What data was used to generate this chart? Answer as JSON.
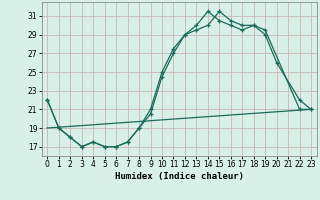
{
  "xlabel": "Humidex (Indice chaleur)",
  "bg_color": "#d8f0e8",
  "line_color": "#1a6b5a",
  "grid_color": "#c8b8b8",
  "xlim": [
    -0.5,
    23.5
  ],
  "ylim": [
    16.0,
    32.5
  ],
  "yticks": [
    17,
    19,
    21,
    23,
    25,
    27,
    29,
    31
  ],
  "xticks": [
    0,
    1,
    2,
    3,
    4,
    5,
    6,
    7,
    8,
    9,
    10,
    11,
    12,
    13,
    14,
    15,
    16,
    17,
    18,
    19,
    20,
    21,
    22,
    23
  ],
  "curve1_x": [
    0,
    1,
    2,
    3,
    4,
    5,
    6,
    7,
    8,
    9,
    10,
    11,
    12,
    13,
    14,
    15,
    16,
    17,
    18,
    19,
    20,
    22,
    23
  ],
  "curve1_y": [
    22,
    19,
    18,
    17,
    17.5,
    17,
    17,
    17.5,
    19,
    21,
    25,
    27.5,
    29,
    30,
    31.5,
    30.5,
    30,
    29.5,
    30,
    29,
    26,
    22,
    21
  ],
  "curve2_x": [
    0,
    1,
    2,
    3,
    4,
    5,
    6,
    7,
    8,
    9,
    10,
    11,
    12,
    13,
    14,
    15,
    16,
    17,
    18,
    19,
    22,
    23
  ],
  "curve2_y": [
    22,
    19,
    18,
    17,
    17.5,
    17,
    17,
    17.5,
    19,
    20.5,
    24.5,
    27,
    29,
    29.5,
    30,
    31.5,
    30.5,
    30,
    30,
    29.5,
    21,
    21
  ],
  "line3_x": [
    0,
    23
  ],
  "line3_y": [
    19,
    21
  ]
}
